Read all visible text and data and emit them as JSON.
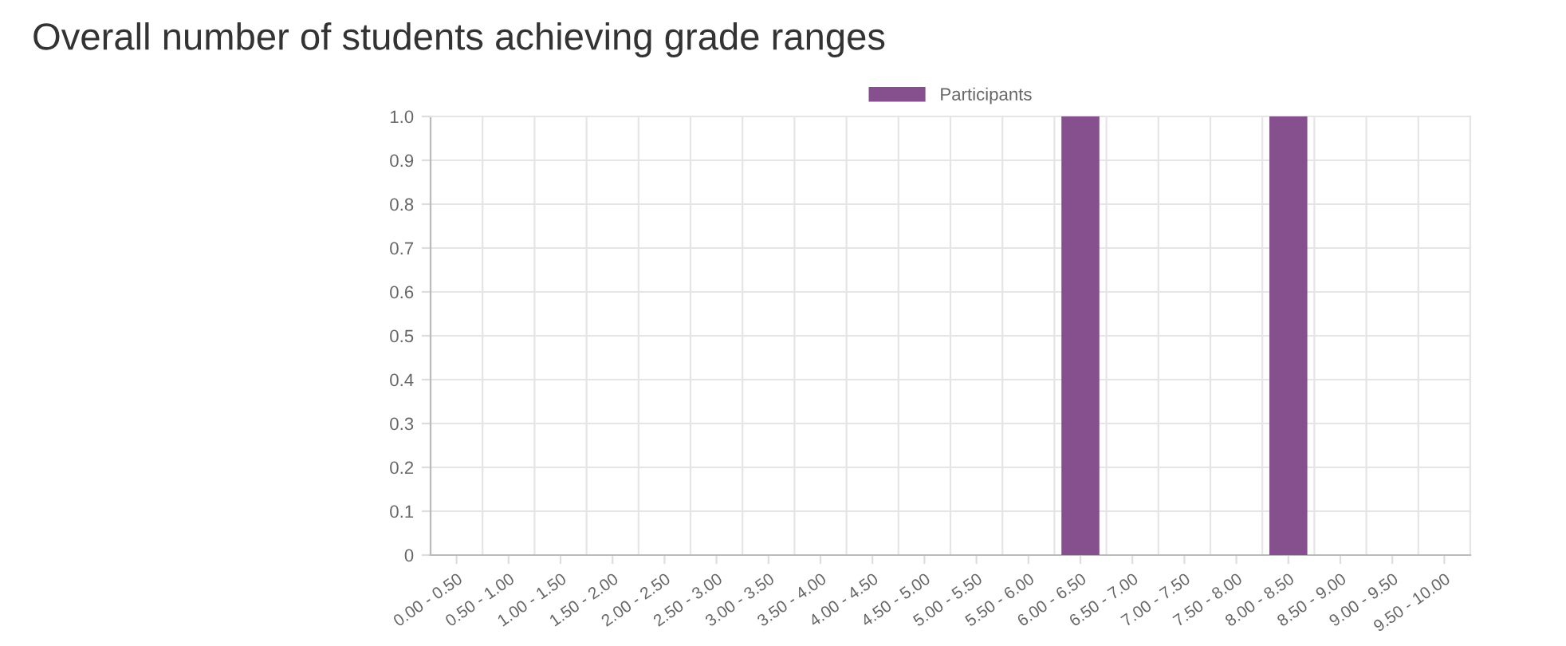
{
  "chart_data": {
    "type": "bar",
    "title": "Overall number of students achieving grade ranges",
    "categories": [
      "0.00 - 0.50",
      "0.50 - 1.00",
      "1.00 - 1.50",
      "1.50 - 2.00",
      "2.00 - 2.50",
      "2.50 - 3.00",
      "3.00 - 3.50",
      "3.50 - 4.00",
      "4.00 - 4.50",
      "4.50 - 5.00",
      "5.00 - 5.50",
      "5.50 - 6.00",
      "6.00 - 6.50",
      "6.50 - 7.00",
      "7.00 - 7.50",
      "7.50 - 8.00",
      "8.00 - 8.50",
      "8.50 - 9.00",
      "9.00 - 9.50",
      "9.50 - 10.00"
    ],
    "series": [
      {
        "name": "Participants",
        "color": "#86508f",
        "values": [
          0,
          0,
          0,
          0,
          0,
          0,
          0,
          0,
          0,
          0,
          0,
          0,
          1,
          0,
          0,
          0,
          1,
          0,
          0,
          0
        ]
      }
    ],
    "ylim": [
      0,
      1.0
    ],
    "yticks": [
      0,
      0.1,
      0.2,
      0.3,
      0.4,
      0.5,
      0.6,
      0.7,
      0.8,
      0.9,
      {
        "value": 1.0,
        "label": "1.0"
      }
    ],
    "grid": true,
    "legend": "top"
  }
}
